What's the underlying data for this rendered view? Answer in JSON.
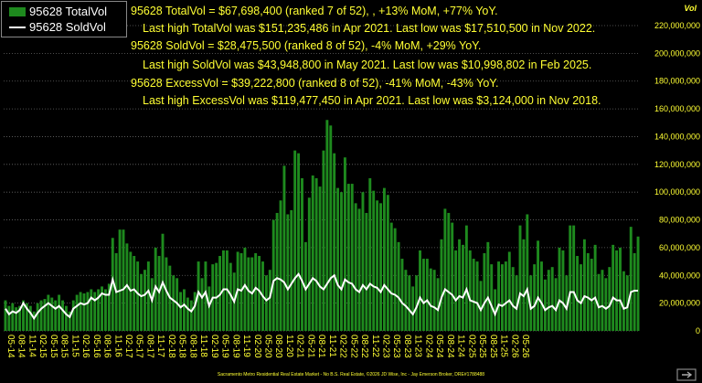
{
  "chart_data": {
    "type": "bar",
    "ylabel": "Vol",
    "ylim": [
      0,
      220000000
    ],
    "yticks": [
      "0",
      "20,000,000",
      "40,000,000",
      "60,000,000",
      "80,000,000",
      "100,000,000",
      "120,000,000",
      "140,000,000",
      "160,000,000",
      "180,000,000",
      "200,000,000",
      "220,000,000"
    ],
    "xticks": [
      "05-14",
      "08-14",
      "11-14",
      "02-15",
      "05-15",
      "08-15",
      "11-15",
      "02-16",
      "05-16",
      "08-16",
      "11-16",
      "02-17",
      "05-17",
      "08-17",
      "11-17",
      "02-18",
      "05-18",
      "08-18",
      "11-18",
      "02-19",
      "05-19",
      "08-19",
      "11-19",
      "02-20",
      "05-20",
      "08-20",
      "11-20",
      "02-21",
      "05-21",
      "08-21",
      "11-21",
      "02-22",
      "05-22",
      "08-22",
      "11-22",
      "02-23",
      "05-23",
      "08-23",
      "11-23",
      "02-24",
      "05-24",
      "08-24",
      "11-24",
      "02-25",
      "05-25",
      "08-25",
      "11-25",
      "02-26",
      "05-26"
    ],
    "series": [
      {
        "name": "95628 TotalVol",
        "type": "bar",
        "color": "#1e8a1e",
        "values": [
          22,
          18,
          20,
          17,
          18,
          22,
          20,
          18,
          14,
          20,
          22,
          23,
          26,
          24,
          22,
          26,
          22,
          18,
          14,
          22,
          26,
          28,
          27,
          28,
          30,
          28,
          30,
          32,
          30,
          34,
          67,
          56,
          73,
          73,
          63,
          57,
          54,
          50,
          41,
          44,
          50,
          38,
          60,
          54,
          70,
          53,
          47,
          40,
          38,
          28,
          30,
          24,
          22,
          28,
          50,
          38,
          50,
          32,
          48,
          49,
          54,
          58,
          58,
          49,
          42,
          57,
          56,
          60,
          53,
          53,
          56,
          54,
          50,
          40,
          44,
          80,
          85,
          94,
          119,
          84,
          87,
          130,
          128,
          110,
          64,
          96,
          112,
          110,
          104,
          130,
          152,
          148,
          128,
          103,
          100,
          125,
          106,
          106,
          92,
          88,
          100,
          85,
          110,
          101,
          94,
          92,
          103,
          98,
          78,
          74,
          64,
          52,
          44,
          40,
          32,
          40,
          58,
          52,
          52,
          45,
          44,
          38,
          66,
          88,
          85,
          78,
          58,
          66,
          62,
          76,
          58,
          52,
          50,
          36,
          56,
          64,
          48,
          30,
          50,
          48,
          50,
          57,
          46,
          40,
          76,
          66,
          84,
          40,
          48,
          65,
          50,
          37,
          44,
          46,
          38,
          60,
          58,
          40,
          76,
          76,
          54,
          48,
          66,
          56,
          52,
          62,
          41,
          44,
          38,
          46,
          62,
          58,
          60,
          43,
          40,
          75,
          56,
          68
        ]
      },
      {
        "name": "95628 SoldVol",
        "type": "line",
        "color": "#ffffff",
        "values": [
          16,
          12,
          14,
          13,
          15,
          20,
          16,
          13,
          9,
          13,
          16,
          18,
          20,
          18,
          16,
          18,
          15,
          12,
          10,
          16,
          18,
          20,
          19,
          20,
          24,
          22,
          24,
          27,
          26,
          26,
          37,
          28,
          29,
          30,
          33,
          29,
          30,
          27,
          25,
          26,
          29,
          22,
          32,
          28,
          35,
          29,
          24,
          22,
          20,
          17,
          19,
          16,
          14,
          18,
          28,
          24,
          28,
          18,
          24,
          24,
          26,
          30,
          30,
          26,
          21,
          30,
          29,
          33,
          29,
          27,
          31,
          29,
          25,
          22,
          24,
          36,
          38,
          37,
          35,
          30,
          34,
          38,
          41,
          36,
          30,
          34,
          38,
          36,
          32,
          30,
          34,
          38,
          40,
          33,
          30,
          37,
          35,
          34,
          30,
          28,
          33,
          30,
          34,
          32,
          31,
          28,
          33,
          30,
          27,
          26,
          24,
          20,
          18,
          15,
          12,
          17,
          24,
          20,
          22,
          18,
          17,
          15,
          24,
          30,
          28,
          26,
          22,
          25,
          24,
          30,
          22,
          21,
          20,
          15,
          20,
          24,
          18,
          12,
          19,
          18,
          20,
          22,
          18,
          16,
          27,
          25,
          30,
          16,
          18,
          24,
          20,
          15,
          17,
          18,
          15,
          22,
          20,
          16,
          28,
          28,
          22,
          20,
          25,
          24,
          22,
          24,
          17,
          18,
          16,
          18,
          24,
          22,
          22,
          16,
          17,
          28,
          29,
          29
        ]
      }
    ]
  },
  "legend": {
    "total_label": "95628 TotalVol",
    "sold_label": "95628 SoldVol"
  },
  "annotations": {
    "line1": "95628 TotalVol = $67,698,400 (ranked 7 of 52), , +13% MoM, +77% YoY.",
    "line2": "Last high TotalVol was $151,235,486 in Apr 2021. Last low was $17,510,500 in Nov 2022.",
    "line3": "95628 SoldVol = $28,475,500 (ranked 8 of 52), -4% MoM, +29% YoY.",
    "line4": "Last high SoldVol was $43,948,800 in May 2021. Last low was $10,998,802 in Feb 2025.",
    "line5": "95628 ExcessVol = $39,222,800 (ranked 8 of 52), -41% MoM, -43% YoY.",
    "line6": "Last high ExcessVol was $119,477,450 in Apr 2021. Last low was $3,124,000 in Nov 2018."
  },
  "footer": "Sacramento Metro Residential Real Estate Market - No B.S. Real Estate, ©2026 JD Wise, Inc - Jay Emerson  Broker, DRE#1788488",
  "colors": {
    "bar": "#1e8a1e",
    "line": "#ffffff",
    "text": "#ffff33",
    "grid": "#666666",
    "background": "#000000"
  }
}
